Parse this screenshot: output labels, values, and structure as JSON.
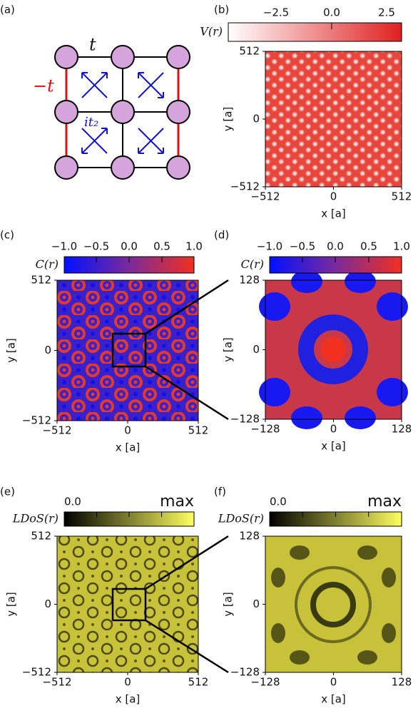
{
  "panels": [
    {
      "label": "(a)",
      "hopping_labels": [
        "t",
        "−t",
        "it₂"
      ]
    },
    {
      "label": "(b)",
      "colorbar": {
        "label": "V(r)",
        "ticks": [
          "−2.5",
          "0.0",
          "2.5"
        ]
      },
      "xticks": [
        "−512",
        "0",
        "512"
      ],
      "yticks": [
        "512",
        "0",
        "−512"
      ],
      "xlabel": "x [a]",
      "ylabel": "y [a]"
    },
    {
      "label": "(c)",
      "colorbar": {
        "label": "C(r)",
        "ticks": [
          "−1.0",
          "−0.5",
          "0.0",
          "0.5",
          "1.0"
        ]
      },
      "xticks": [
        "−512",
        "0",
        "512"
      ],
      "yticks": [
        "512",
        "0",
        "−512"
      ],
      "xlabel": "x [a]",
      "ylabel": "y [a]"
    },
    {
      "label": "(d)",
      "colorbar": {
        "label": "C(r)",
        "ticks": [
          "−1.0",
          "−0.5",
          "0.0",
          "0.5",
          "1.0"
        ]
      },
      "xticks": [
        "−128",
        "0",
        "128"
      ],
      "yticks": [
        "128",
        "0",
        "−128"
      ],
      "xlabel": "x [a]",
      "ylabel": "y [a]"
    },
    {
      "label": "(e)",
      "colorbar": {
        "label": "LDoS(r)",
        "ticks": [
          "0.0",
          "max"
        ]
      },
      "xticks": [
        "−512",
        "0",
        "512"
      ],
      "yticks": [
        "512",
        "0",
        "−512"
      ],
      "xlabel": "x [a]",
      "ylabel": "y [a]"
    },
    {
      "label": "(f)",
      "colorbar": {
        "label": "LDoS(r)",
        "ticks": [
          "0.0",
          "max"
        ]
      },
      "xticks": [
        "−128",
        "0",
        "128"
      ],
      "yticks": [
        "128",
        "0",
        "−128"
      ],
      "xlabel": "x [a]",
      "ylabel": "y [a]"
    }
  ]
}
